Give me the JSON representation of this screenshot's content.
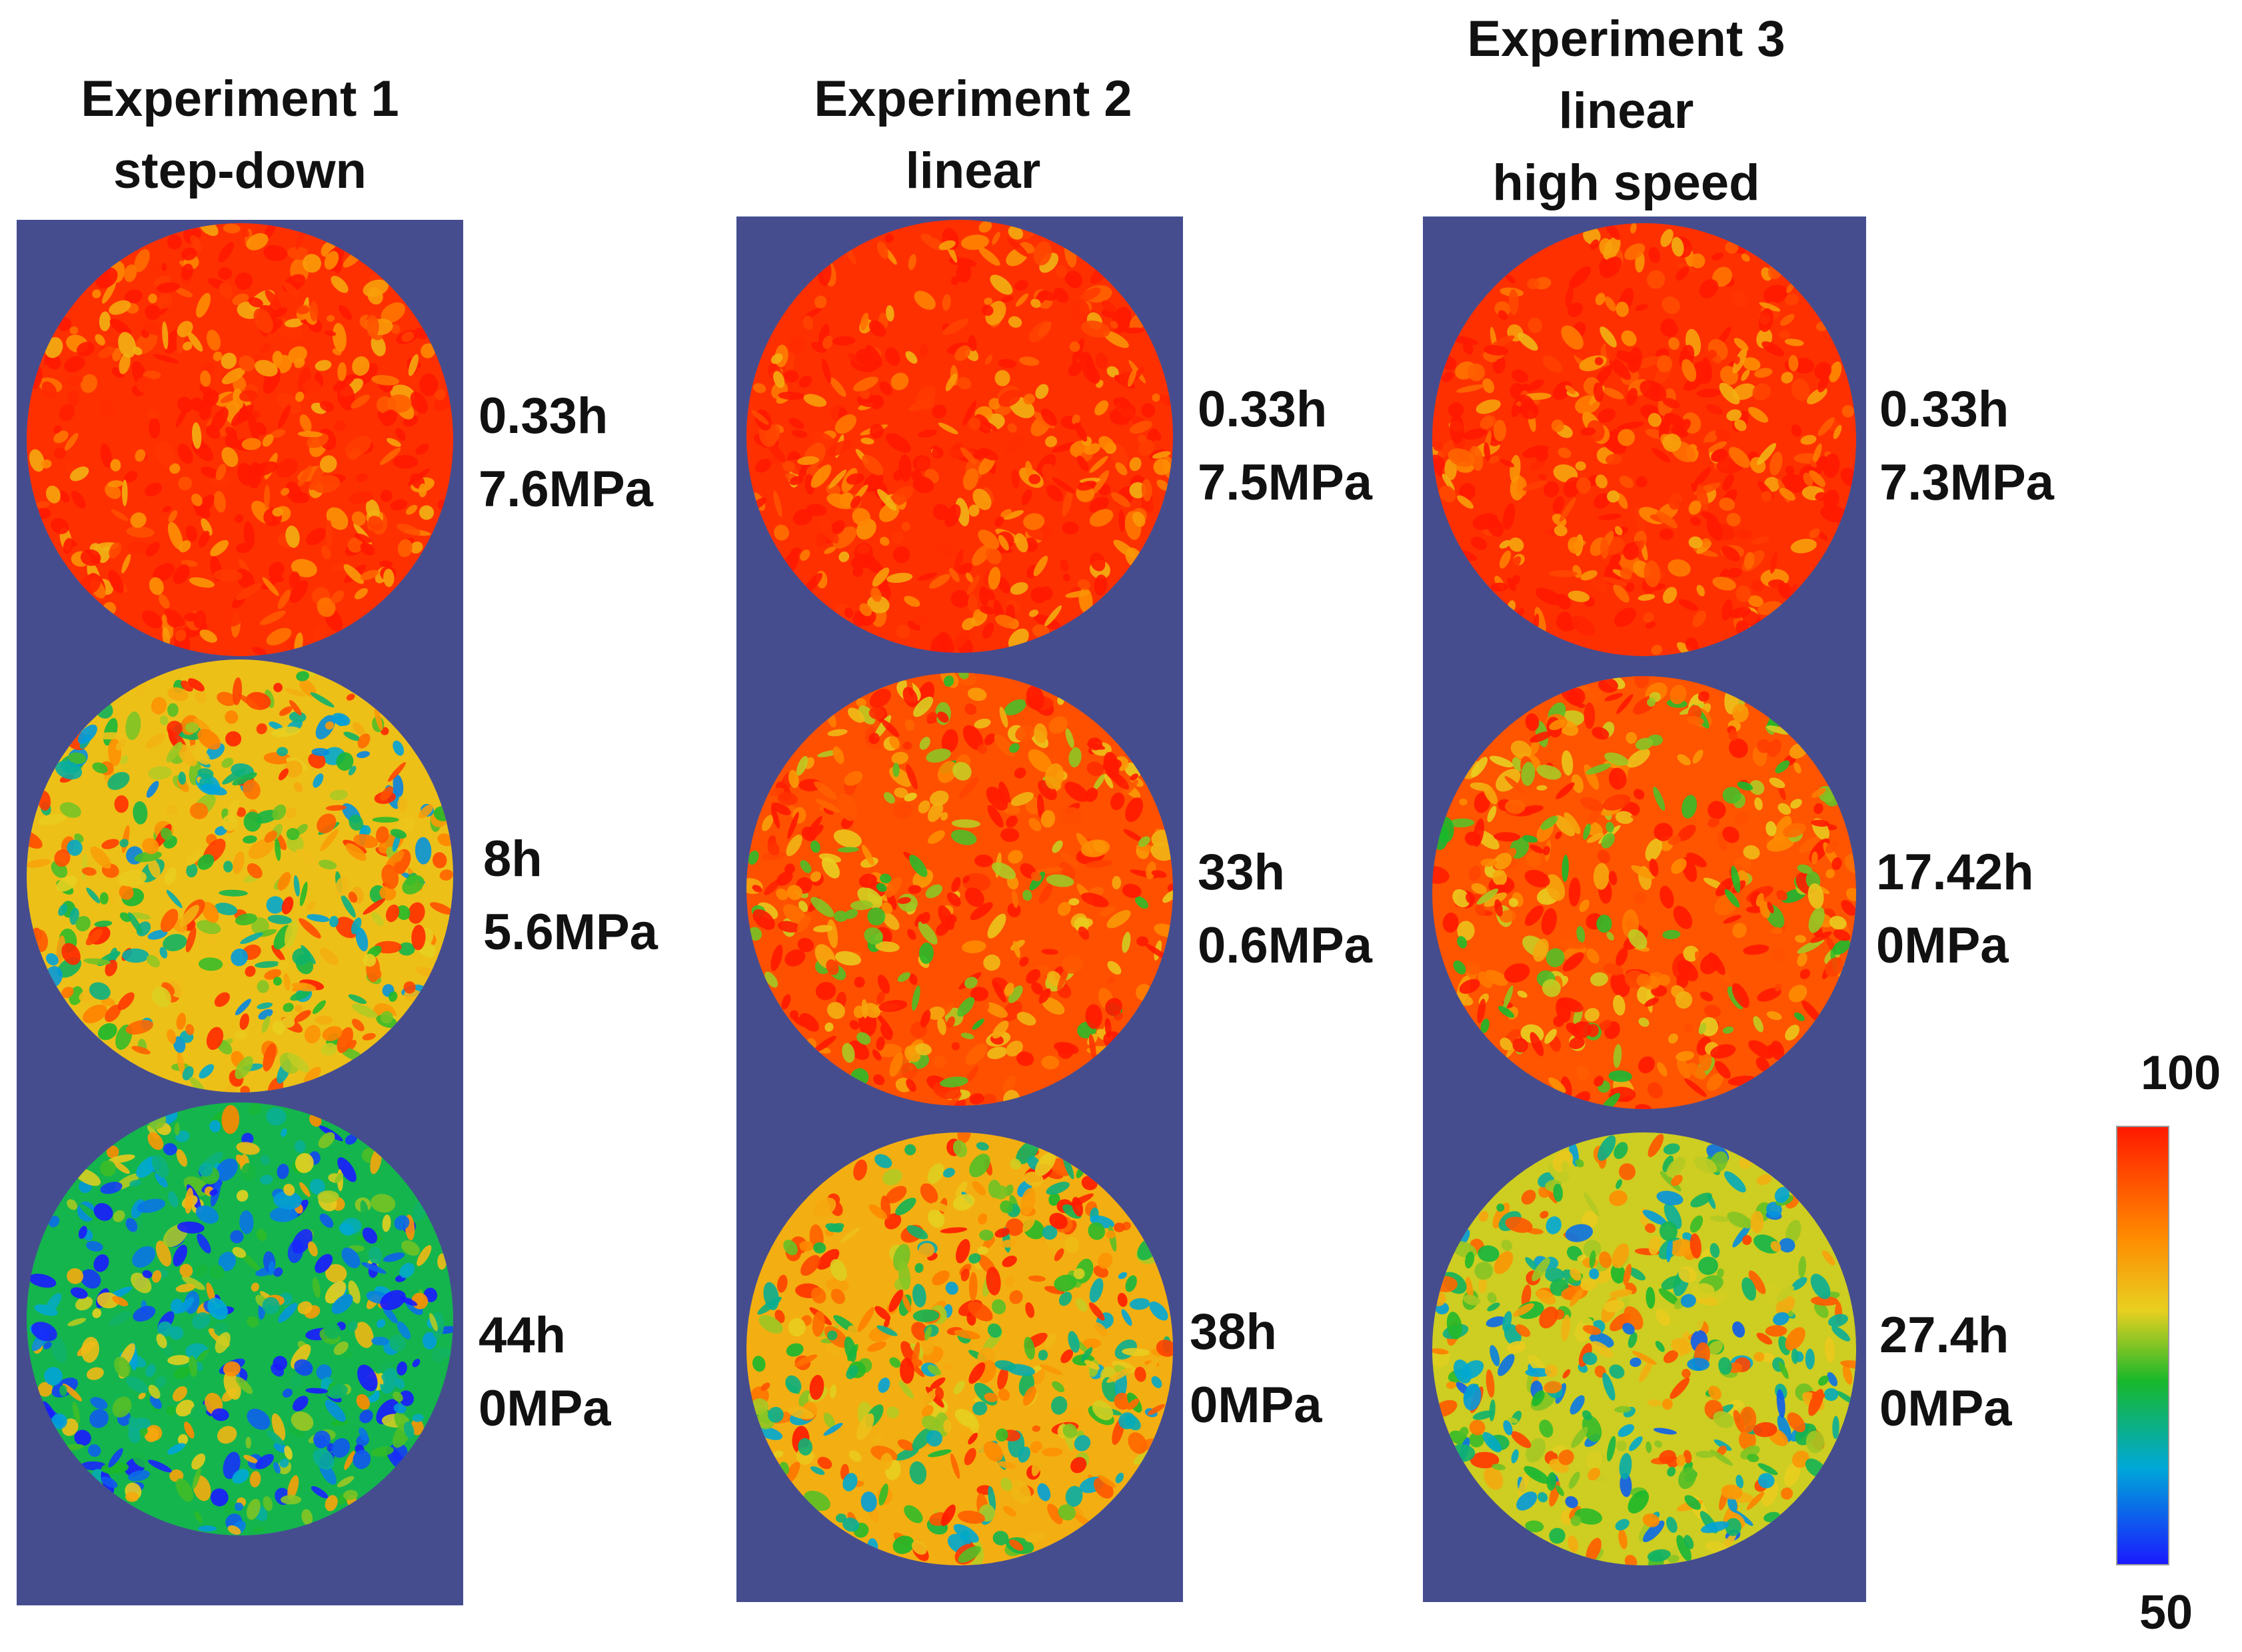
{
  "colors": {
    "panel_background": "#454d8f",
    "scale_high": "#ff1a00",
    "scale_mid": "#e8d020",
    "scale_low_green": "#19b82a",
    "scale_low": "#1a1aff"
  },
  "colorbar": {
    "max_label": "100",
    "min_label": "50"
  },
  "experiments": [
    {
      "title_lines": [
        "Experiment 1",
        "step-down"
      ],
      "snapshots": [
        {
          "time": "0.33h",
          "pressure": "7.6MPa",
          "field_level": 0.95
        },
        {
          "time": "8h",
          "pressure": "5.6MPa",
          "field_level": 0.62
        },
        {
          "time": "44h",
          "pressure": "0MPa",
          "field_level": 0.38
        }
      ]
    },
    {
      "title_lines": [
        "Experiment 2",
        "linear"
      ],
      "snapshots": [
        {
          "time": "0.33h",
          "pressure": "7.5MPa",
          "field_level": 0.95
        },
        {
          "time": "33h",
          "pressure": "0.6MPa",
          "field_level": 0.88
        },
        {
          "time": "38h",
          "pressure": "0MPa",
          "field_level": 0.66
        }
      ]
    },
    {
      "title_lines": [
        "Experiment 3",
        "linear",
        "high speed"
      ],
      "snapshots": [
        {
          "time": "0.33h",
          "pressure": "7.3MPa",
          "field_level": 0.95
        },
        {
          "time": "17.42h",
          "pressure": "0MPa",
          "field_level": 0.87
        },
        {
          "time": "27.4h",
          "pressure": "0MPa",
          "field_level": 0.56
        }
      ]
    }
  ]
}
